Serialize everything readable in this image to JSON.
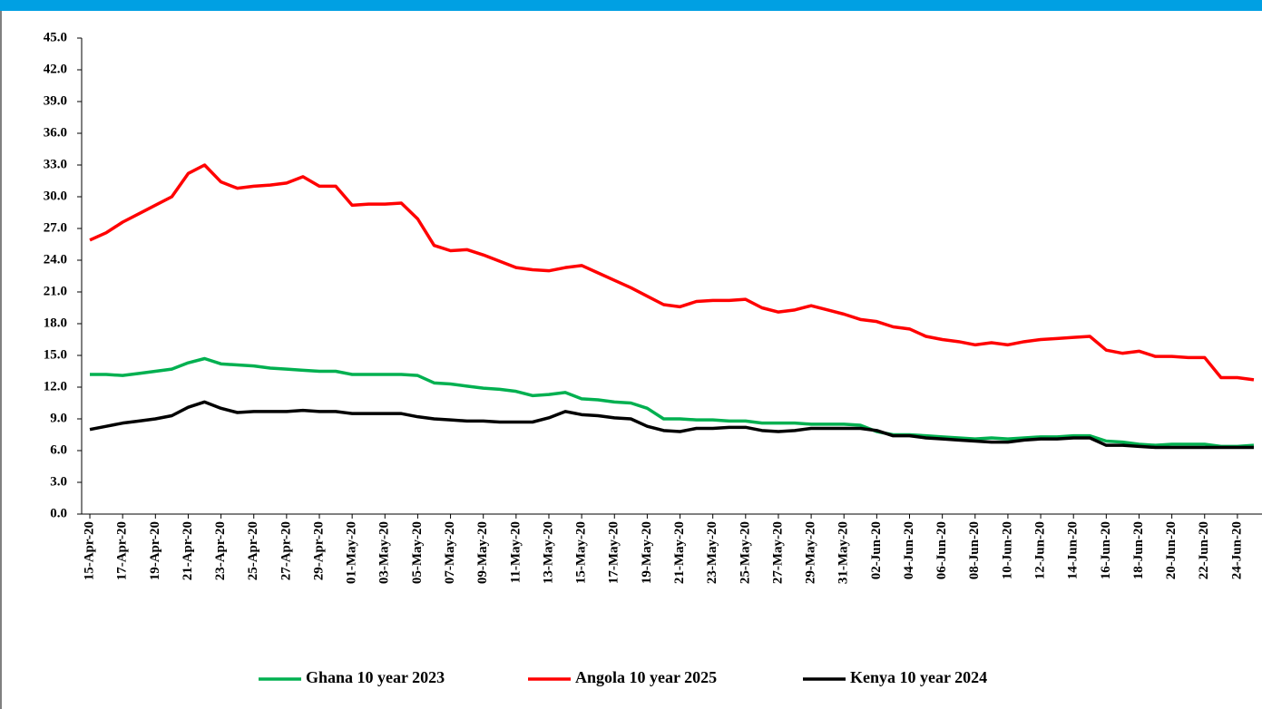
{
  "chart_data": {
    "type": "line",
    "categories": [
      "15-Apr-20",
      null,
      "17-Apr-20",
      null,
      "19-Apr-20",
      null,
      "21-Apr-20",
      null,
      "23-Apr-20",
      null,
      "25-Apr-20",
      null,
      "27-Apr-20",
      null,
      "29-Apr-20",
      null,
      "01-May-20",
      null,
      "03-May-20",
      null,
      "05-May-20",
      null,
      "07-May-20",
      null,
      "09-May-20",
      null,
      "11-May-20",
      null,
      "13-May-20",
      null,
      "15-May-20",
      null,
      "17-May-20",
      null,
      "19-May-20",
      null,
      "21-May-20",
      null,
      "23-May-20",
      null,
      "25-May-20",
      null,
      "27-May-20",
      null,
      "29-May-20",
      null,
      "31-May-20",
      null,
      "02-Jun-20",
      null,
      "04-Jun-20",
      null,
      "06-Jun-20",
      null,
      "08-Jun-20",
      null,
      "10-Jun-20",
      null,
      "12-Jun-20",
      null,
      "14-Jun-20",
      null,
      "16-Jun-20",
      null,
      "18-Jun-20",
      null,
      "20-Jun-20",
      null,
      "22-Jun-20",
      null,
      "24-Jun-20",
      null
    ],
    "series": [
      {
        "name": "Ghana 10 year 2023",
        "color": "#00b050",
        "values": [
          13.2,
          13.2,
          13.1,
          13.3,
          13.5,
          13.7,
          14.3,
          14.7,
          14.2,
          14.1,
          14.0,
          13.8,
          13.7,
          13.6,
          13.5,
          13.5,
          13.2,
          13.2,
          13.2,
          13.2,
          13.1,
          12.4,
          12.3,
          12.1,
          11.9,
          11.8,
          11.6,
          11.2,
          11.3,
          11.5,
          10.9,
          10.8,
          10.6,
          10.5,
          10.0,
          9.0,
          9.0,
          8.9,
          8.9,
          8.8,
          8.8,
          8.6,
          8.6,
          8.6,
          8.5,
          8.5,
          8.5,
          8.4,
          7.8,
          7.5,
          7.5,
          7.4,
          7.3,
          7.2,
          7.1,
          7.2,
          7.1,
          7.2,
          7.3,
          7.3,
          7.4,
          7.4,
          6.9,
          6.8,
          6.6,
          6.5,
          6.6,
          6.6,
          6.6,
          6.4,
          6.4,
          6.5
        ]
      },
      {
        "name": "Angola 10 year 2025",
        "color": "#ff0000",
        "values": [
          25.9,
          26.6,
          27.6,
          28.4,
          29.2,
          30.0,
          32.2,
          33.0,
          31.4,
          30.8,
          31.0,
          31.1,
          31.3,
          31.9,
          31.0,
          31.0,
          29.2,
          29.3,
          29.3,
          29.4,
          27.9,
          25.4,
          24.9,
          25.0,
          24.5,
          23.9,
          23.3,
          23.1,
          23.0,
          23.3,
          23.5,
          22.8,
          22.1,
          21.4,
          20.6,
          19.8,
          19.6,
          20.1,
          20.2,
          20.2,
          20.3,
          19.5,
          19.1,
          19.3,
          19.7,
          19.3,
          18.9,
          18.4,
          18.2,
          17.7,
          17.5,
          16.8,
          16.5,
          16.3,
          16.0,
          16.2,
          16.0,
          16.3,
          16.5,
          16.6,
          16.7,
          16.8,
          15.5,
          15.2,
          15.4,
          14.9,
          14.9,
          14.8,
          14.8,
          12.9,
          12.9,
          12.7
        ]
      },
      {
        "name": "Kenya 10 year 2024",
        "color": "#000000",
        "values": [
          8.0,
          8.3,
          8.6,
          8.8,
          9.0,
          9.3,
          10.1,
          10.6,
          10.0,
          9.6,
          9.7,
          9.7,
          9.7,
          9.8,
          9.7,
          9.7,
          9.5,
          9.5,
          9.5,
          9.5,
          9.2,
          9.0,
          8.9,
          8.8,
          8.8,
          8.7,
          8.7,
          8.7,
          9.1,
          9.7,
          9.4,
          9.3,
          9.1,
          9.0,
          8.3,
          7.9,
          7.8,
          8.1,
          8.1,
          8.2,
          8.2,
          7.9,
          7.8,
          7.9,
          8.1,
          8.1,
          8.1,
          8.1,
          7.9,
          7.4,
          7.4,
          7.2,
          7.1,
          7.0,
          6.9,
          6.8,
          6.8,
          7.0,
          7.1,
          7.1,
          7.2,
          7.2,
          6.5,
          6.5,
          6.4,
          6.3,
          6.3,
          6.3,
          6.3,
          6.3,
          6.3,
          6.3
        ]
      }
    ],
    "ylim": [
      0,
      45
    ],
    "yticks": [
      {
        "value": 0,
        "label": "0.0"
      },
      {
        "value": 3,
        "label": "3.0"
      },
      {
        "value": 6,
        "label": "6.0"
      },
      {
        "value": 9,
        "label": "9.0"
      },
      {
        "value": 12,
        "label": "12.0"
      },
      {
        "value": 15,
        "label": "15.0"
      },
      {
        "value": 18,
        "label": "18.0"
      },
      {
        "value": 21,
        "label": "21.0"
      },
      {
        "value": 24,
        "label": "24.0"
      },
      {
        "value": 27,
        "label": "27.0"
      },
      {
        "value": 30,
        "label": "30.0"
      },
      {
        "value": 33,
        "label": "33.0"
      },
      {
        "value": 36,
        "label": "36.0"
      },
      {
        "value": 39,
        "label": "39.0"
      },
      {
        "value": 42,
        "label": "42.0"
      },
      {
        "value": 45,
        "label": "45.0"
      }
    ],
    "grid": false,
    "legend": "bottom"
  }
}
